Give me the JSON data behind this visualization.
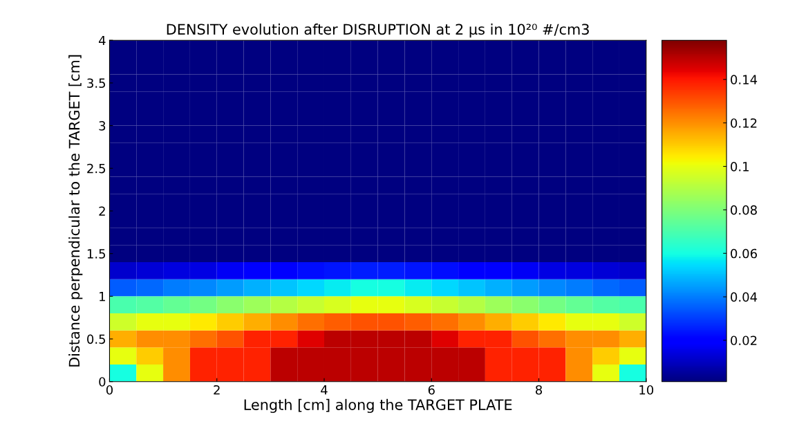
{
  "chart_data": {
    "type": "heatmap",
    "title": "DENSITY evolution after DISRUPTION at 2 μs in 10²⁰ #/cm3",
    "xlabel": "Length [cm] along the TARGET PLATE",
    "ylabel": "Distance perpendicular to the TARGET [cm]",
    "x": [
      0.25,
      0.75,
      1.25,
      1.75,
      2.25,
      2.75,
      3.25,
      3.75,
      4.25,
      4.75,
      5.25,
      5.75,
      6.25,
      6.75,
      7.25,
      7.75,
      8.25,
      8.75,
      9.25,
      9.75
    ],
    "y": [
      0.1,
      0.3,
      0.5,
      0.7,
      0.9,
      1.1,
      1.3,
      1.5,
      1.7,
      1.9,
      2.1,
      2.3,
      2.5,
      2.7,
      2.9,
      3.1,
      3.3,
      3.5,
      3.7,
      3.9
    ],
    "cells": [
      [
        0.06,
        0.1,
        0.12,
        0.138,
        0.138,
        0.138,
        0.15,
        0.15,
        0.15,
        0.15,
        0.15,
        0.15,
        0.15,
        0.15,
        0.138,
        0.138,
        0.138,
        0.12,
        0.1,
        0.06
      ],
      [
        0.1,
        0.11,
        0.12,
        0.138,
        0.138,
        0.138,
        0.15,
        0.15,
        0.15,
        0.15,
        0.15,
        0.15,
        0.15,
        0.15,
        0.138,
        0.138,
        0.138,
        0.12,
        0.11,
        0.1
      ],
      [
        0.115,
        0.12,
        0.12,
        0.125,
        0.13,
        0.138,
        0.138,
        0.145,
        0.15,
        0.15,
        0.15,
        0.15,
        0.145,
        0.138,
        0.138,
        0.13,
        0.125,
        0.12,
        0.12,
        0.115
      ],
      [
        0.095,
        0.1,
        0.1,
        0.105,
        0.11,
        0.115,
        0.12,
        0.125,
        0.128,
        0.13,
        0.13,
        0.128,
        0.125,
        0.12,
        0.115,
        0.11,
        0.105,
        0.1,
        0.1,
        0.095
      ],
      [
        0.07,
        0.072,
        0.075,
        0.078,
        0.082,
        0.086,
        0.09,
        0.094,
        0.097,
        0.1,
        0.1,
        0.097,
        0.094,
        0.09,
        0.086,
        0.082,
        0.078,
        0.075,
        0.072,
        0.07
      ],
      [
        0.035,
        0.037,
        0.04,
        0.042,
        0.045,
        0.048,
        0.051,
        0.054,
        0.057,
        0.06,
        0.06,
        0.057,
        0.054,
        0.051,
        0.048,
        0.045,
        0.042,
        0.04,
        0.037,
        0.035
      ],
      [
        0.012,
        0.013,
        0.014,
        0.015,
        0.017,
        0.019,
        0.021,
        0.023,
        0.024,
        0.025,
        0.025,
        0.024,
        0.023,
        0.021,
        0.019,
        0.017,
        0.015,
        0.014,
        0.013,
        0.012
      ],
      [
        0.001,
        0.001,
        0.001,
        0.001,
        0.001,
        0.001,
        0.001,
        0.001,
        0.001,
        0.001,
        0.001,
        0.001,
        0.001,
        0.001,
        0.001,
        0.001,
        0.001,
        0.001,
        0.001,
        0.001
      ],
      [
        0.001,
        0.001,
        0.001,
        0.001,
        0.001,
        0.001,
        0.001,
        0.001,
        0.001,
        0.001,
        0.001,
        0.001,
        0.001,
        0.001,
        0.001,
        0.001,
        0.001,
        0.001,
        0.001,
        0.001
      ],
      [
        0.001,
        0.001,
        0.001,
        0.001,
        0.001,
        0.001,
        0.001,
        0.001,
        0.001,
        0.001,
        0.001,
        0.001,
        0.001,
        0.001,
        0.001,
        0.001,
        0.001,
        0.001,
        0.001,
        0.001
      ],
      [
        0.001,
        0.001,
        0.001,
        0.001,
        0.001,
        0.001,
        0.001,
        0.001,
        0.001,
        0.001,
        0.001,
        0.001,
        0.001,
        0.001,
        0.001,
        0.001,
        0.001,
        0.001,
        0.001,
        0.001
      ],
      [
        0.001,
        0.001,
        0.001,
        0.001,
        0.001,
        0.001,
        0.001,
        0.001,
        0.001,
        0.001,
        0.001,
        0.001,
        0.001,
        0.001,
        0.001,
        0.001,
        0.001,
        0.001,
        0.001,
        0.001
      ],
      [
        0.001,
        0.001,
        0.001,
        0.001,
        0.001,
        0.001,
        0.001,
        0.001,
        0.001,
        0.001,
        0.001,
        0.001,
        0.001,
        0.001,
        0.001,
        0.001,
        0.001,
        0.001,
        0.001,
        0.001
      ],
      [
        0.001,
        0.001,
        0.001,
        0.001,
        0.001,
        0.001,
        0.001,
        0.001,
        0.001,
        0.001,
        0.001,
        0.001,
        0.001,
        0.001,
        0.001,
        0.001,
        0.001,
        0.001,
        0.001,
        0.001
      ],
      [
        0.001,
        0.001,
        0.001,
        0.001,
        0.001,
        0.001,
        0.001,
        0.001,
        0.001,
        0.001,
        0.001,
        0.001,
        0.001,
        0.001,
        0.001,
        0.001,
        0.001,
        0.001,
        0.001,
        0.001
      ],
      [
        0.001,
        0.001,
        0.001,
        0.001,
        0.001,
        0.001,
        0.001,
        0.001,
        0.001,
        0.001,
        0.001,
        0.001,
        0.001,
        0.001,
        0.001,
        0.001,
        0.001,
        0.001,
        0.001,
        0.001
      ],
      [
        0.001,
        0.001,
        0.001,
        0.001,
        0.001,
        0.001,
        0.001,
        0.001,
        0.001,
        0.001,
        0.001,
        0.001,
        0.001,
        0.001,
        0.001,
        0.001,
        0.001,
        0.001,
        0.001,
        0.001
      ],
      [
        0.001,
        0.001,
        0.001,
        0.001,
        0.001,
        0.001,
        0.001,
        0.001,
        0.001,
        0.001,
        0.001,
        0.001,
        0.001,
        0.001,
        0.001,
        0.001,
        0.001,
        0.001,
        0.001,
        0.001
      ],
      [
        0.001,
        0.001,
        0.001,
        0.001,
        0.001,
        0.001,
        0.001,
        0.001,
        0.001,
        0.001,
        0.001,
        0.001,
        0.001,
        0.001,
        0.001,
        0.001,
        0.001,
        0.001,
        0.001,
        0.001
      ],
      [
        0.001,
        0.001,
        0.001,
        0.001,
        0.001,
        0.001,
        0.001,
        0.001,
        0.001,
        0.001,
        0.001,
        0.001,
        0.001,
        0.001,
        0.001,
        0.001,
        0.001,
        0.001,
        0.001,
        0.001
      ]
    ],
    "clim": [
      0.001,
      0.158
    ],
    "cticks": [
      0.02,
      0.04,
      0.06,
      0.08,
      0.1,
      0.12,
      0.14
    ],
    "xlim": [
      0,
      10
    ],
    "xticks": [
      0,
      2,
      4,
      6,
      8,
      10
    ],
    "ylim": [
      0,
      4
    ],
    "yticks": [
      0,
      0.5,
      1,
      1.5,
      2,
      2.5,
      3,
      3.5,
      4
    ]
  }
}
